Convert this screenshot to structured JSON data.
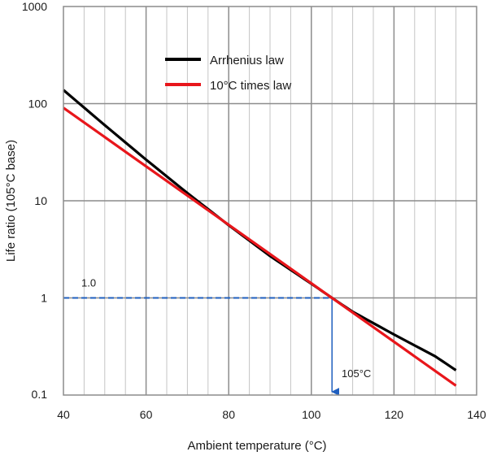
{
  "chart_data": {
    "type": "line",
    "title": "",
    "xlabel": "Ambient temperature (°C)",
    "ylabel": "Life ratio (105°C base)",
    "xlim": [
      40,
      140
    ],
    "ylim": [
      0.1,
      1000
    ],
    "yscale": "log",
    "grid": true,
    "legend_position": "top-center",
    "x_ticks": [
      40,
      60,
      80,
      100,
      120,
      140
    ],
    "x_tick_labels": [
      "40",
      "60",
      "80",
      "100",
      "120",
      "140"
    ],
    "x_minor_step": 5,
    "y_ticks": [
      0.1,
      1,
      10,
      100,
      1000
    ],
    "y_tick_labels": [
      "0.1",
      "1",
      "10",
      "100",
      "1000"
    ],
    "series": [
      {
        "name": "Arrhenius law",
        "color": "#000000",
        "x": [
          40,
          50,
          60,
          70,
          80,
          90,
          100,
          105,
          110,
          120,
          130,
          135
        ],
        "y": [
          138,
          60,
          26.5,
          12,
          5.6,
          2.7,
          1.4,
          1.0,
          0.72,
          0.42,
          0.25,
          0.18
        ]
      },
      {
        "name": "10°C times law",
        "color": "#e8161b",
        "x": [
          40,
          135
        ],
        "y": [
          90.5,
          0.125
        ]
      }
    ],
    "annotations": [
      {
        "text": "1.0",
        "x": 43,
        "y": 1.0,
        "color": "#1f5fbf",
        "style": "dashed-horizontal"
      },
      {
        "text": "105°C",
        "x": 105,
        "y": 0.1,
        "color": "#1f5fbf",
        "style": "arrow-down"
      }
    ]
  }
}
